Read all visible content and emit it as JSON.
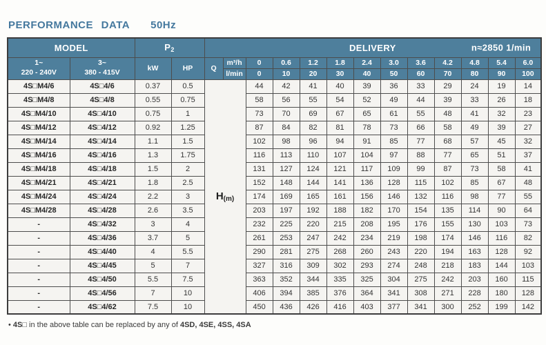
{
  "title": {
    "main": "PERFORMANCE DATA",
    "freq": "50Hz"
  },
  "table": {
    "headers": {
      "model": "MODEL",
      "p2_base": "P",
      "p2_sub": "2",
      "delivery": "DELIVERY",
      "speed": "n≈2850 1/min",
      "phase1": "1~",
      "volt1": "220 - 240V",
      "phase3": "3~",
      "volt3": "380 - 415V",
      "kw": "kW",
      "hp": "HP",
      "q": "Q",
      "unit_m3h": "m³/h",
      "unit_lmin": "l/min",
      "head_base": "H",
      "head_sub": "(m)"
    },
    "flow_m3h": [
      "0",
      "0.6",
      "1.2",
      "1.8",
      "2.4",
      "3.0",
      "3.6",
      "4.2",
      "4.8",
      "5.4",
      "6.0"
    ],
    "flow_lmin": [
      "0",
      "10",
      "20",
      "30",
      "40",
      "50",
      "60",
      "70",
      "80",
      "90",
      "100"
    ],
    "rows": [
      {
        "m1": "4S□M4/6",
        "m3": "4S□4/6",
        "kw": "0.37",
        "hp": "0.5",
        "h": [
          "44",
          "42",
          "41",
          "40",
          "39",
          "36",
          "33",
          "29",
          "24",
          "19",
          "14"
        ]
      },
      {
        "m1": "4S□M4/8",
        "m3": "4S□4/8",
        "kw": "0.55",
        "hp": "0.75",
        "h": [
          "58",
          "56",
          "55",
          "54",
          "52",
          "49",
          "44",
          "39",
          "33",
          "26",
          "18"
        ]
      },
      {
        "m1": "4S□M4/10",
        "m3": "4S□4/10",
        "kw": "0.75",
        "hp": "1",
        "h": [
          "73",
          "70",
          "69",
          "67",
          "65",
          "61",
          "55",
          "48",
          "41",
          "32",
          "23"
        ]
      },
      {
        "m1": "4S□M4/12",
        "m3": "4S□4/12",
        "kw": "0.92",
        "hp": "1.25",
        "h": [
          "87",
          "84",
          "82",
          "81",
          "78",
          "73",
          "66",
          "58",
          "49",
          "39",
          "27"
        ]
      },
      {
        "m1": "4S□M4/14",
        "m3": "4S□4/14",
        "kw": "1.1",
        "hp": "1.5",
        "h": [
          "102",
          "98",
          "96",
          "94",
          "91",
          "85",
          "77",
          "68",
          "57",
          "45",
          "32"
        ]
      },
      {
        "m1": "4S□M4/16",
        "m3": "4S□4/16",
        "kw": "1.3",
        "hp": "1.75",
        "h": [
          "116",
          "113",
          "110",
          "107",
          "104",
          "97",
          "88",
          "77",
          "65",
          "51",
          "37"
        ]
      },
      {
        "m1": "4S□M4/18",
        "m3": "4S□4/18",
        "kw": "1.5",
        "hp": "2",
        "h": [
          "131",
          "127",
          "124",
          "121",
          "117",
          "109",
          "99",
          "87",
          "73",
          "58",
          "41"
        ]
      },
      {
        "m1": "4S□M4/21",
        "m3": "4S□4/21",
        "kw": "1.8",
        "hp": "2.5",
        "h": [
          "152",
          "148",
          "144",
          "141",
          "136",
          "128",
          "115",
          "102",
          "85",
          "67",
          "48"
        ]
      },
      {
        "m1": "4S□M4/24",
        "m3": "4S□4/24",
        "kw": "2.2",
        "hp": "3",
        "h": [
          "174",
          "169",
          "165",
          "161",
          "156",
          "146",
          "132",
          "116",
          "98",
          "77",
          "55"
        ]
      },
      {
        "m1": "4S□M4/28",
        "m3": "4S□4/28",
        "kw": "2.6",
        "hp": "3.5",
        "h": [
          "203",
          "197",
          "192",
          "188",
          "182",
          "170",
          "154",
          "135",
          "114",
          "90",
          "64"
        ]
      },
      {
        "m1": "-",
        "m3": "4S□4/32",
        "kw": "3",
        "hp": "4",
        "h": [
          "232",
          "225",
          "220",
          "215",
          "208",
          "195",
          "176",
          "155",
          "130",
          "103",
          "73"
        ]
      },
      {
        "m1": "-",
        "m3": "4S□4/36",
        "kw": "3.7",
        "hp": "5",
        "h": [
          "261",
          "253",
          "247",
          "242",
          "234",
          "219",
          "198",
          "174",
          "146",
          "116",
          "82"
        ]
      },
      {
        "m1": "-",
        "m3": "4S□4/40",
        "kw": "4",
        "hp": "5.5",
        "h": [
          "290",
          "281",
          "275",
          "268",
          "260",
          "243",
          "220",
          "194",
          "163",
          "128",
          "92"
        ]
      },
      {
        "m1": "-",
        "m3": "4S□4/45",
        "kw": "5",
        "hp": "7",
        "h": [
          "327",
          "316",
          "309",
          "302",
          "293",
          "274",
          "248",
          "218",
          "183",
          "144",
          "103"
        ]
      },
      {
        "m1": "-",
        "m3": "4S□4/50",
        "kw": "5.5",
        "hp": "7.5",
        "h": [
          "363",
          "352",
          "344",
          "335",
          "325",
          "304",
          "275",
          "242",
          "203",
          "160",
          "115"
        ]
      },
      {
        "m1": "-",
        "m3": "4S□4/56",
        "kw": "7",
        "hp": "10",
        "h": [
          "406",
          "394",
          "385",
          "376",
          "364",
          "341",
          "308",
          "271",
          "228",
          "180",
          "128"
        ]
      },
      {
        "m1": "-",
        "m3": "4S□4/62",
        "kw": "7.5",
        "hp": "10",
        "h": [
          "450",
          "436",
          "426",
          "416",
          "403",
          "377",
          "341",
          "300",
          "252",
          "199",
          "142"
        ]
      }
    ]
  },
  "footnote": {
    "bullet": "•",
    "code": "4S□",
    "text": " in the above table can be replaced by any of ",
    "models": "4SD, 4SE, 4SS, 4SA"
  }
}
